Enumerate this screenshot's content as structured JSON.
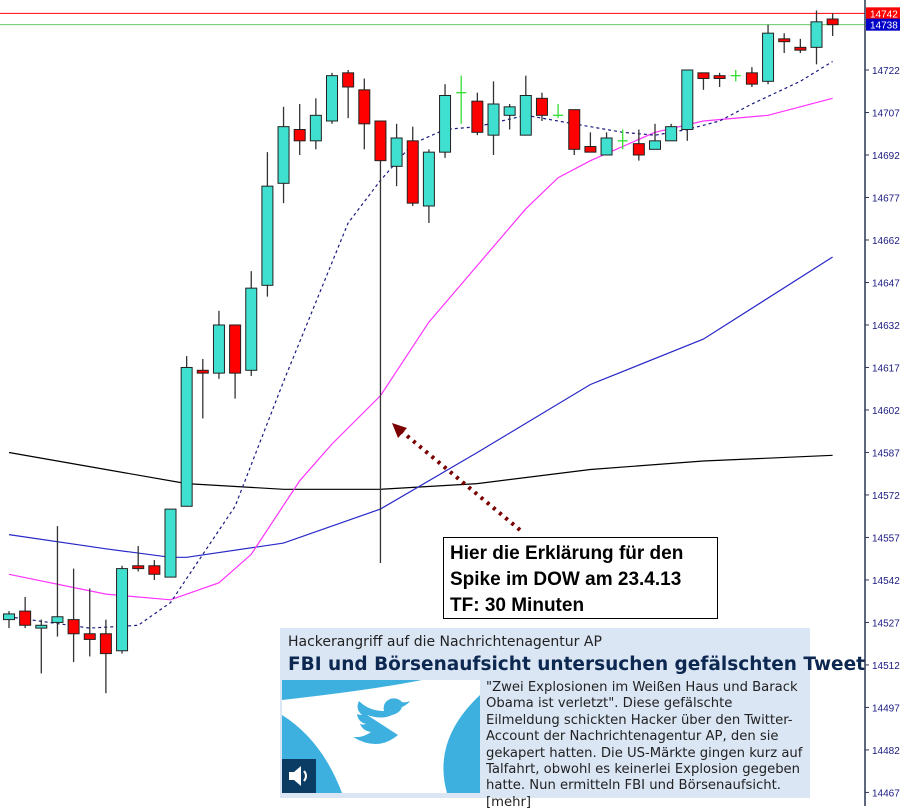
{
  "chart_data": {
    "type": "candlestick",
    "title": "",
    "ylim": [
      14462,
      14745
    ],
    "yticks": [
      14722,
      14707,
      14692,
      14677,
      14662,
      14647,
      14632,
      14617,
      14602,
      14587,
      14572,
      14557,
      14542,
      14527,
      14512,
      14497,
      14482,
      14467
    ],
    "price_tags": [
      {
        "value": 14742,
        "label": "14742",
        "color": "#ff0000"
      },
      {
        "value": 14738,
        "label": "14738",
        "color": "#0000c8"
      }
    ],
    "horizontal_lines": [
      {
        "value": 14742,
        "color": "#ff0000"
      },
      {
        "value": 14738,
        "color": "#66cc66"
      }
    ],
    "colors": {
      "bull": "#40e0d0",
      "bear": "#ff0000",
      "doji": "#33dd33",
      "axis_text": "#1a1a80"
    },
    "candles_ohlc": [
      [
        14528,
        14531,
        14525,
        14530
      ],
      [
        14531,
        14536,
        14525,
        14526
      ],
      [
        14525,
        14528,
        14509,
        14526
      ],
      [
        14527,
        14561,
        14522,
        14529
      ],
      [
        14528,
        14546,
        14513,
        14523
      ],
      [
        14523,
        14539,
        14515,
        14521
      ],
      [
        14523,
        14528,
        14502,
        14516
      ],
      [
        14517,
        14547,
        14516,
        14546
      ],
      [
        14547,
        14554,
        14545,
        14546
      ],
      [
        14547,
        14549,
        14542,
        14544
      ],
      [
        14543,
        14567,
        14543,
        14567
      ],
      [
        14568,
        14621,
        14568,
        14617
      ],
      [
        14616,
        14620,
        14599,
        14615
      ],
      [
        14615,
        14637,
        14613,
        14632
      ],
      [
        14632,
        14632,
        14606,
        14615
      ],
      [
        14616,
        14651,
        14614,
        14645
      ],
      [
        14646,
        14693,
        14642,
        14681
      ],
      [
        14682,
        14709,
        14675,
        14702
      ],
      [
        14701,
        14710,
        14692,
        14697
      ],
      [
        14697,
        14712,
        14694,
        14706
      ],
      [
        14704,
        14721,
        14703,
        14720
      ],
      [
        14721,
        14722,
        14705,
        14716
      ],
      [
        14715,
        14719,
        14694,
        14703
      ],
      [
        14704,
        14704,
        14548,
        14690
      ],
      [
        14688,
        14703,
        14681,
        14698
      ],
      [
        14697,
        14702,
        14674,
        14675
      ],
      [
        14674,
        14694,
        14668,
        14693
      ],
      [
        14693,
        14717,
        14691,
        14713
      ],
      [
        14714,
        14720,
        14703,
        14714
      ],
      [
        14711,
        14714,
        14699,
        14700
      ],
      [
        14699,
        14718,
        14692,
        14710
      ],
      [
        14706,
        14710,
        14701,
        14709
      ],
      [
        14699,
        14720,
        14699,
        14713
      ],
      [
        14712,
        14714,
        14704,
        14706
      ],
      [
        14706,
        14710,
        14705,
        14706
      ],
      [
        14708,
        14708,
        14692,
        14694
      ],
      [
        14695,
        14700,
        14693,
        14693
      ],
      [
        14692,
        14700,
        14692,
        14698
      ],
      [
        14697,
        14701,
        14694,
        14697
      ],
      [
        14696,
        14701,
        14690,
        14692
      ],
      [
        14694,
        14703,
        14694,
        14697
      ],
      [
        14697,
        14703,
        14697,
        14702
      ],
      [
        14701,
        14722,
        14697,
        14722
      ],
      [
        14721,
        14721,
        14715,
        14719
      ],
      [
        14720,
        14721,
        14716,
        14719
      ],
      [
        14720,
        14722,
        14718,
        14720
      ],
      [
        14721,
        14723,
        14716,
        14717
      ],
      [
        14718,
        14738,
        14717,
        14735
      ],
      [
        14733,
        14735,
        14728,
        14732
      ],
      [
        14730,
        14733,
        14728,
        14729
      ],
      [
        14730,
        14743,
        14724,
        14739
      ],
      [
        14740,
        14742,
        14734,
        14738
      ]
    ],
    "moving_averages": [
      {
        "color": "#000000",
        "style": "solid",
        "points": [
          [
            0,
            14587
          ],
          [
            6,
            14581
          ],
          [
            11,
            14576
          ],
          [
            17,
            14574
          ],
          [
            23,
            14574
          ],
          [
            29,
            14576
          ],
          [
            36,
            14581
          ],
          [
            43,
            14584
          ],
          [
            51,
            14586
          ]
        ]
      },
      {
        "color": "#2828c8",
        "style": "solid",
        "points": [
          [
            0,
            14558
          ],
          [
            6,
            14553
          ],
          [
            10,
            14550
          ],
          [
            11,
            14550
          ],
          [
            17,
            14555
          ],
          [
            23,
            14567
          ],
          [
            29,
            14587
          ],
          [
            36,
            14611
          ],
          [
            43,
            14627
          ],
          [
            51,
            14656
          ]
        ]
      },
      {
        "color": "#ff33ff",
        "style": "solid",
        "points": [
          [
            0,
            14544
          ],
          [
            6,
            14537
          ],
          [
            10,
            14535
          ],
          [
            13,
            14541
          ],
          [
            15,
            14551
          ],
          [
            18,
            14577
          ],
          [
            20,
            14590
          ],
          [
            23,
            14607
          ],
          [
            26,
            14633
          ],
          [
            29,
            14653
          ],
          [
            32,
            14673
          ],
          [
            34,
            14684
          ],
          [
            36,
            14690
          ],
          [
            40,
            14700
          ],
          [
            43,
            14704
          ],
          [
            47,
            14706
          ],
          [
            51,
            14712
          ]
        ]
      },
      {
        "color": "#1a1a80",
        "style": "dotted",
        "points": [
          [
            0,
            14529
          ],
          [
            5,
            14525
          ],
          [
            8,
            14526
          ],
          [
            10,
            14534
          ],
          [
            12,
            14551
          ],
          [
            14,
            14568
          ],
          [
            17,
            14612
          ],
          [
            19,
            14640
          ],
          [
            21,
            14668
          ],
          [
            23,
            14683
          ],
          [
            25,
            14696
          ],
          [
            27,
            14701
          ],
          [
            29,
            14702
          ],
          [
            32,
            14706
          ],
          [
            34,
            14704
          ],
          [
            36,
            14702
          ],
          [
            38,
            14700
          ],
          [
            40,
            14699
          ],
          [
            42,
            14701
          ],
          [
            44,
            14704
          ],
          [
            46,
            14710
          ],
          [
            49,
            14718
          ],
          [
            51,
            14725
          ]
        ]
      }
    ],
    "annotation": {
      "lines": [
        "Hier die Erklärung für den",
        "Spike im DOW am 23.4.13",
        "TF: 30 Minuten"
      ],
      "arrow_color": "#7a0000"
    }
  },
  "news": {
    "kicker": "Hackerangriff auf die Nachrichtenagentur AP",
    "headline": "FBI und Börsenaufsicht untersuchen gefälschten Tweet",
    "body": "\"Zwei Explosionen im Weißen Haus und Barack Obama ist verletzt\". Diese gefälschte Eilmeldung schickten Hacker über den Twitter-Account der Nachrichtenagentur AP, den sie gekapert hatten. Die US-Märkte gingen kurz auf Talfahrt, obwohl es keinerlei Explosion gegeben hatte. Nun ermitteln FBI und Börsenaufsicht. [mehr]",
    "image_icon": "twitter-bird-icon",
    "audio_icon": "speaker-icon"
  }
}
